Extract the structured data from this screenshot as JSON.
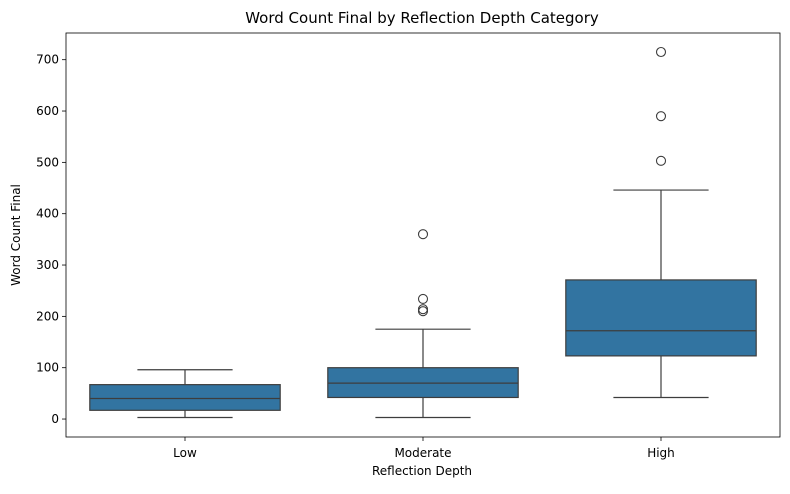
{
  "chart_data": {
    "type": "box",
    "title": "Word Count Final by Reflection Depth Category",
    "xlabel": "Reflection Depth",
    "ylabel": "Word Count Final",
    "ylim": [
      -35,
      752
    ],
    "yticks": [
      0,
      100,
      200,
      300,
      400,
      500,
      600,
      700
    ],
    "grid": false,
    "box_color": "#3274a1",
    "line_color": "#3d3d3d",
    "categories": [
      "Low",
      "Moderate",
      "High"
    ],
    "boxes": [
      {
        "category": "Low",
        "whisker_low": 3,
        "q1": 17,
        "median": 40,
        "q3": 67,
        "whisker_high": 96,
        "outliers": []
      },
      {
        "category": "Moderate",
        "whisker_low": 3,
        "q1": 42,
        "median": 70,
        "q3": 100,
        "whisker_high": 175,
        "outliers": [
          210,
          214,
          234,
          360
        ]
      },
      {
        "category": "High",
        "whisker_low": 42,
        "q1": 123,
        "median": 172,
        "q3": 271,
        "whisker_high": 446,
        "outliers": [
          503,
          590,
          715
        ]
      }
    ]
  }
}
